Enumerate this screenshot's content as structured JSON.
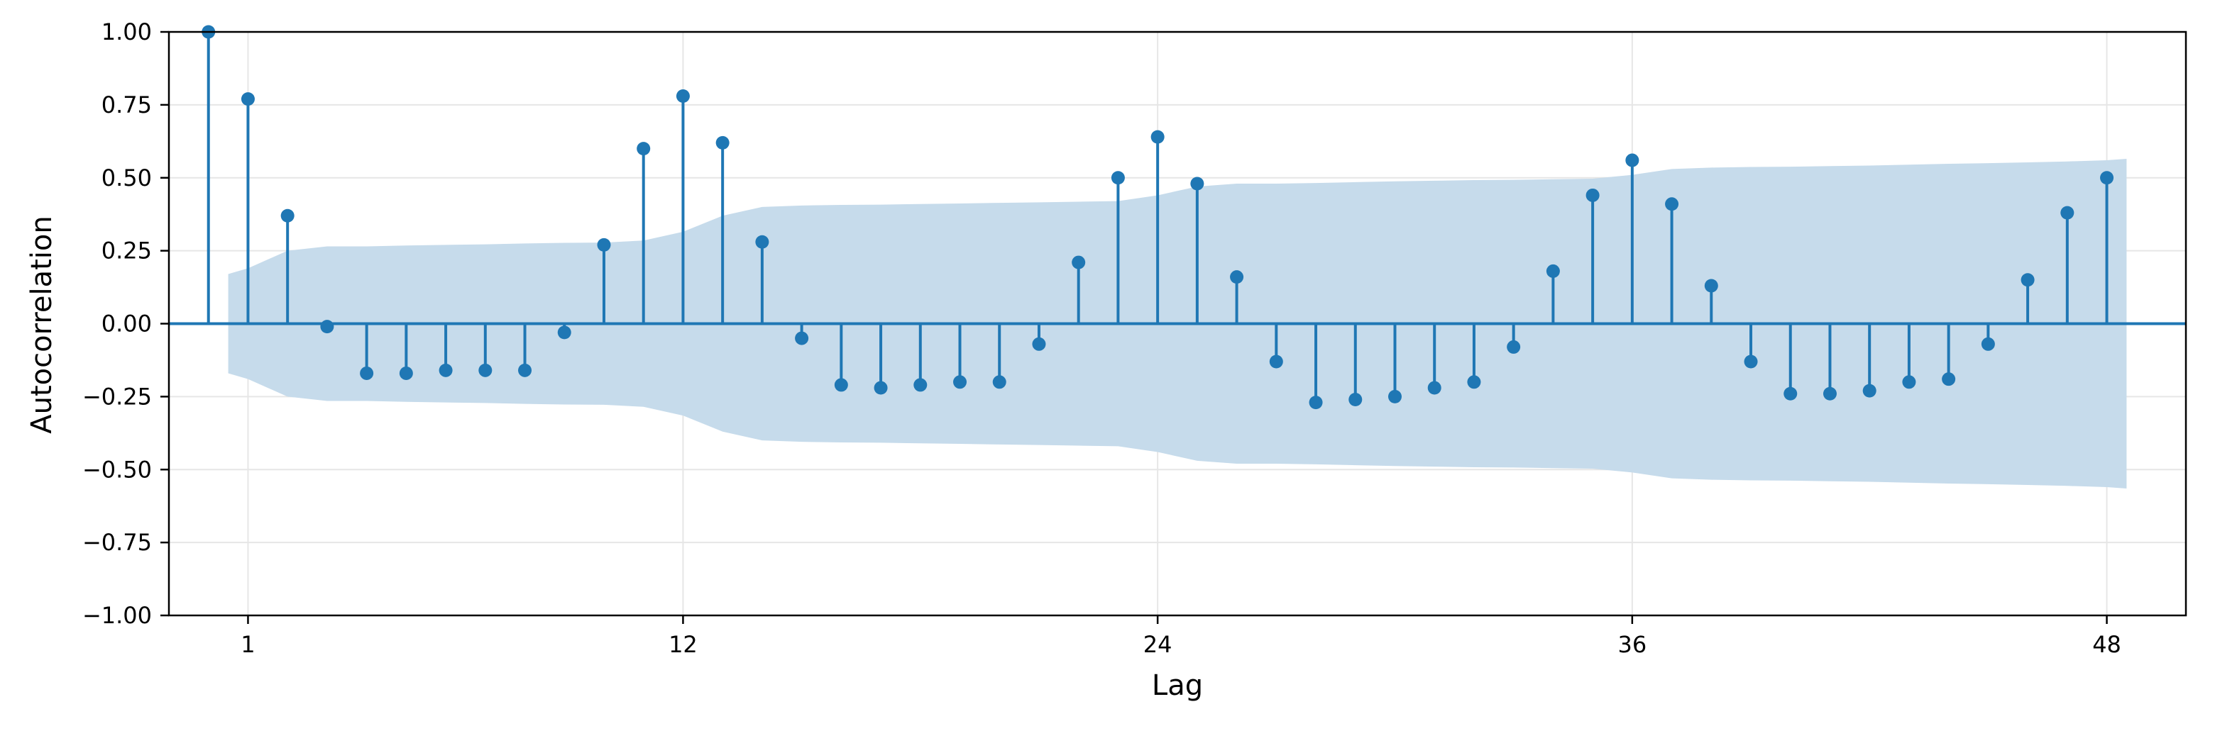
{
  "chart_data": {
    "type": "stem",
    "xlabel": "Lag",
    "ylabel": "Autocorrelation",
    "xlim": [
      -1.0,
      50.0
    ],
    "ylim": [
      -1.0,
      1.0
    ],
    "grid": true,
    "colors": {
      "stem": "#1f77b4",
      "band": "#c6dbeb",
      "grid": "#e6e6e6",
      "axes": "#000000"
    },
    "xticks": [
      1,
      12,
      24,
      36,
      48
    ],
    "xtick_labels": [
      "1",
      "12",
      "24",
      "36",
      "48"
    ],
    "yticks": [
      -1.0,
      -0.75,
      -0.5,
      -0.25,
      0.0,
      0.25,
      0.5,
      0.75,
      1.0
    ],
    "ytick_labels": [
      "−1.00",
      "−0.75",
      "−0.50",
      "−0.25",
      "0.00",
      "0.25",
      "0.50",
      "0.75",
      "1.00"
    ],
    "lags": [
      0,
      1,
      2,
      3,
      4,
      5,
      6,
      7,
      8,
      9,
      10,
      11,
      12,
      13,
      14,
      15,
      16,
      17,
      18,
      19,
      20,
      21,
      22,
      23,
      24,
      25,
      26,
      27,
      28,
      29,
      30,
      31,
      32,
      33,
      34,
      35,
      36,
      37,
      38,
      39,
      40,
      41,
      42,
      43,
      44,
      45,
      46,
      47,
      48
    ],
    "values": [
      1.0,
      0.77,
      0.37,
      -0.01,
      -0.17,
      -0.17,
      -0.16,
      -0.16,
      -0.16,
      -0.03,
      0.27,
      0.6,
      0.78,
      0.62,
      0.28,
      -0.05,
      -0.21,
      -0.22,
      -0.21,
      -0.2,
      -0.2,
      -0.07,
      0.21,
      0.5,
      0.64,
      0.48,
      0.16,
      -0.13,
      -0.27,
      -0.26,
      -0.25,
      -0.22,
      -0.2,
      -0.08,
      0.18,
      0.44,
      0.56,
      0.41,
      0.13,
      -0.13,
      -0.24,
      -0.24,
      -0.23,
      -0.2,
      -0.19,
      -0.07,
      0.15,
      0.38,
      0.5
    ],
    "confidence_band": {
      "lags": [
        0.5,
        1,
        2,
        3,
        4,
        5,
        6,
        7,
        8,
        9,
        10,
        11,
        12,
        13,
        14,
        15,
        16,
        17,
        18,
        19,
        20,
        21,
        22,
        23,
        24,
        25,
        26,
        27,
        28,
        29,
        30,
        31,
        32,
        33,
        34,
        35,
        36,
        37,
        38,
        39,
        40,
        41,
        42,
        43,
        44,
        45,
        46,
        47,
        48,
        48.5
      ],
      "upper": [
        0.17,
        0.19,
        0.25,
        0.265,
        0.265,
        0.268,
        0.27,
        0.272,
        0.275,
        0.277,
        0.278,
        0.285,
        0.315,
        0.37,
        0.4,
        0.405,
        0.407,
        0.408,
        0.41,
        0.412,
        0.414,
        0.416,
        0.418,
        0.42,
        0.44,
        0.47,
        0.48,
        0.48,
        0.482,
        0.485,
        0.488,
        0.49,
        0.492,
        0.493,
        0.495,
        0.497,
        0.51,
        0.53,
        0.535,
        0.537,
        0.538,
        0.54,
        0.542,
        0.545,
        0.548,
        0.55,
        0.553,
        0.556,
        0.56,
        0.565
      ]
    }
  }
}
